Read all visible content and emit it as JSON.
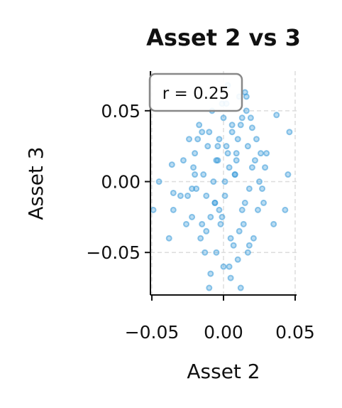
{
  "chart_data": {
    "type": "scatter",
    "title": "Asset 2 vs 3",
    "xlabel": "Asset 2",
    "ylabel": "Asset 3",
    "annotation": "r = 0.25",
    "color": "#3a9ad9",
    "grid": true,
    "xlim": [
      -0.051,
      0.051
    ],
    "ylim": [
      -0.08,
      0.078
    ],
    "xticks": [
      {
        "value": -0.05,
        "label": "−0.05"
      },
      {
        "value": 0,
        "label": "0.00"
      },
      {
        "value": 0.05,
        "label": "0.05"
      }
    ],
    "yticks": [
      {
        "value": -0.05,
        "label": "−0.05"
      },
      {
        "value": 0,
        "label": "0.00"
      },
      {
        "value": 0.05,
        "label": "0.05"
      }
    ],
    "x": [
      -0.045,
      -0.049,
      0.046,
      0.037,
      0.043,
      0.035,
      0.045,
      0.012,
      -0.01,
      0.015,
      0.003,
      -0.038,
      -0.035,
      -0.036,
      -0.035,
      0.016,
      -0.025,
      -0.02,
      -0.015,
      -0.01,
      -0.005,
      0.0,
      0.005,
      0.01,
      0.015,
      0.02,
      0.025,
      0.03,
      -0.028,
      -0.022,
      -0.018,
      -0.012,
      -0.008,
      -0.003,
      0.002,
      0.007,
      0.012,
      0.018,
      0.023,
      0.028,
      -0.026,
      -0.021,
      -0.016,
      -0.011,
      -0.006,
      -0.001,
      0.004,
      0.009,
      0.014,
      0.019,
      0.024,
      0.029,
      -0.024,
      -0.019,
      -0.014,
      -0.009,
      -0.004,
      0.001,
      0.006,
      0.011,
      0.016,
      0.021,
      0.026,
      -0.03,
      -0.017,
      -0.013,
      -0.007,
      -0.002,
      0.003,
      0.008,
      0.013,
      0.017,
      0.022,
      0.027,
      -0.02,
      -0.012,
      -0.005,
      0.0,
      0.006,
      0.011,
      0.018,
      -0.009,
      -0.003,
      0.004,
      0.01,
      -0.015,
      0.008,
      -0.001,
      0.013,
      0.002,
      -0.006,
      0.005,
      0.02,
      -0.022,
      0.017,
      -0.004,
      0.001,
      0.009
    ],
    "values": [
      0.0,
      -0.02,
      0.035,
      0.047,
      -0.02,
      -0.03,
      0.005,
      -0.075,
      -0.075,
      0.063,
      0.068,
      -0.04,
      -0.02,
      0.012,
      -0.008,
      0.06,
      -0.01,
      0.02,
      -0.03,
      0.035,
      -0.05,
      0.045,
      -0.04,
      0.03,
      -0.015,
      0.01,
      0.0,
      0.02,
      0.015,
      -0.025,
      0.03,
      -0.01,
      0.05,
      -0.02,
      0.025,
      -0.045,
      0.04,
      -0.005,
      0.03,
      -0.015,
      -0.03,
      0.01,
      -0.04,
      0.025,
      -0.015,
      0.055,
      -0.06,
      0.015,
      -0.03,
      0.045,
      -0.02,
      0.01,
      0.03,
      -0.005,
      0.005,
      -0.025,
      0.015,
      -0.01,
      0.035,
      -0.035,
      0.05,
      -0.04,
      0.02,
      -0.01,
      0.04,
      -0.05,
      0.0,
      -0.03,
      0.02,
      0.005,
      -0.02,
      0.025,
      0.015,
      -0.005,
      0.005,
      -0.035,
      0.015,
      -0.06,
      0.04,
      0.06,
      -0.045,
      -0.065,
      0.03,
      0.01,
      -0.055,
      0.035,
      0.005,
      -0.025,
      0.045,
      0.055,
      -0.015,
      -0.068,
      0.038,
      -0.005,
      -0.05,
      0.025,
      0.0,
      0.02
    ]
  }
}
